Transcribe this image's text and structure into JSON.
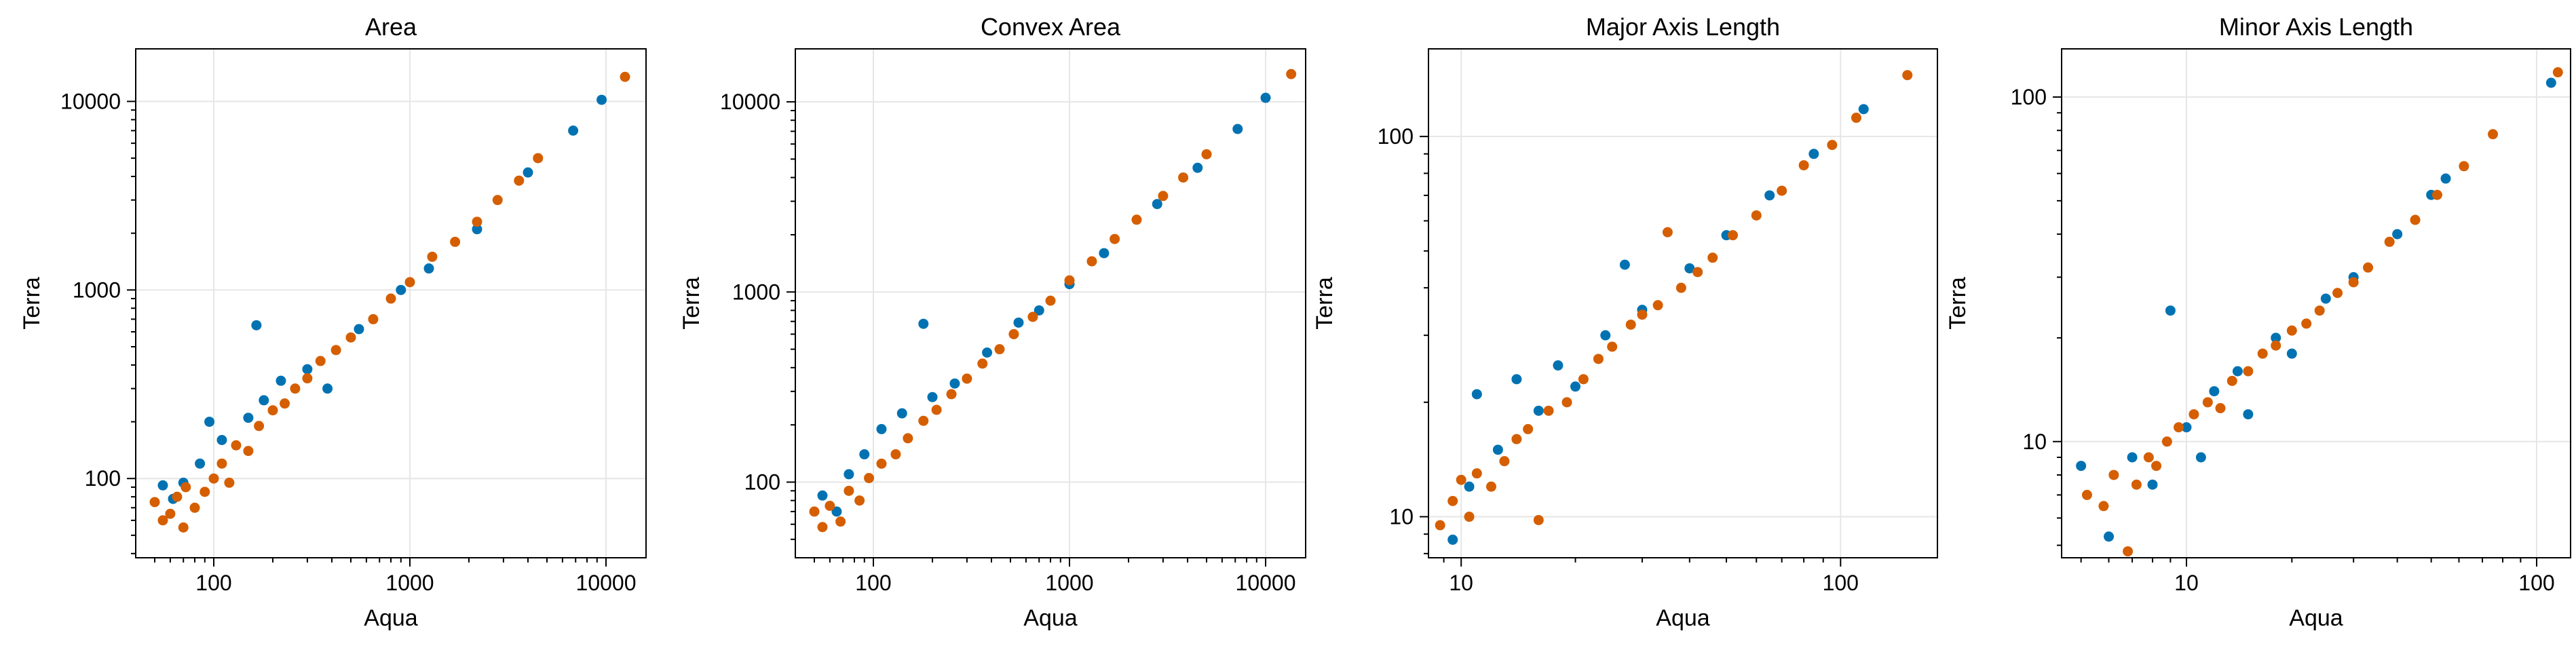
{
  "colors": {
    "series_a": "#0072B2",
    "series_b": "#D55E00",
    "grid": "#e6e6e6",
    "frame": "#000000"
  },
  "chart_data": [
    {
      "type": "scatter",
      "title": "Area",
      "xlabel": "Aqua",
      "ylabel": "Terra",
      "xscale": "log",
      "yscale": "log",
      "xlim": [
        40,
        16000
      ],
      "ylim": [
        38,
        19000
      ],
      "xticks": [
        100,
        1000,
        10000
      ],
      "xtick_labels": [
        "100",
        "1000",
        "10000"
      ],
      "yticks": [
        100,
        1000,
        10000
      ],
      "ytick_labels": [
        "100",
        "1000",
        "10000"
      ],
      "grid": true,
      "series": [
        {
          "color": "#0072B2",
          "points": [
            [
              55,
              92
            ],
            [
              62,
              78
            ],
            [
              70,
              95
            ],
            [
              85,
              120
            ],
            [
              95,
              200
            ],
            [
              110,
              160
            ],
            [
              150,
              210
            ],
            [
              165,
              650
            ],
            [
              180,
              260
            ],
            [
              220,
              330
            ],
            [
              300,
              380
            ],
            [
              380,
              300
            ],
            [
              550,
              620
            ],
            [
              900,
              1000
            ],
            [
              1250,
              1300
            ],
            [
              2200,
              2100
            ],
            [
              4000,
              4200
            ],
            [
              6800,
              7000
            ],
            [
              9500,
              10200
            ]
          ]
        },
        {
          "color": "#D55E00",
          "points": [
            [
              50,
              75
            ],
            [
              55,
              60
            ],
            [
              60,
              65
            ],
            [
              65,
              80
            ],
            [
              70,
              55
            ],
            [
              72,
              90
            ],
            [
              80,
              70
            ],
            [
              90,
              85
            ],
            [
              100,
              100
            ],
            [
              110,
              120
            ],
            [
              120,
              95
            ],
            [
              130,
              150
            ],
            [
              150,
              140
            ],
            [
              170,
              190
            ],
            [
              200,
              230
            ],
            [
              230,
              250
            ],
            [
              260,
              300
            ],
            [
              300,
              340
            ],
            [
              350,
              420
            ],
            [
              420,
              480
            ],
            [
              500,
              560
            ],
            [
              650,
              700
            ],
            [
              800,
              900
            ],
            [
              1000,
              1100
            ],
            [
              1300,
              1500
            ],
            [
              1700,
              1800
            ],
            [
              2200,
              2300
            ],
            [
              2800,
              3000
            ],
            [
              3600,
              3800
            ],
            [
              4500,
              5000
            ],
            [
              12500,
              13500
            ]
          ]
        }
      ]
    },
    {
      "type": "scatter",
      "title": "Convex Area",
      "xlabel": "Aqua",
      "ylabel": "Terra",
      "xscale": "log",
      "yscale": "log",
      "xlim": [
        40,
        16000
      ],
      "ylim": [
        40,
        19000
      ],
      "xticks": [
        100,
        1000,
        10000
      ],
      "xtick_labels": [
        "100",
        "1000",
        "10000"
      ],
      "yticks": [
        100,
        1000,
        10000
      ],
      "ytick_labels": [
        "100",
        "1000",
        "10000"
      ],
      "grid": true,
      "series": [
        {
          "color": "#0072B2",
          "points": [
            [
              55,
              85
            ],
            [
              65,
              70
            ],
            [
              75,
              110
            ],
            [
              90,
              140
            ],
            [
              110,
              190
            ],
            [
              140,
              230
            ],
            [
              180,
              680
            ],
            [
              200,
              280
            ],
            [
              260,
              330
            ],
            [
              380,
              480
            ],
            [
              550,
              690
            ],
            [
              700,
              800
            ],
            [
              1000,
              1100
            ],
            [
              1500,
              1600
            ],
            [
              2800,
              2900
            ],
            [
              4500,
              4500
            ],
            [
              7200,
              7200
            ],
            [
              10000,
              10500
            ]
          ]
        },
        {
          "color": "#D55E00",
          "points": [
            [
              50,
              70
            ],
            [
              55,
              58
            ],
            [
              60,
              75
            ],
            [
              68,
              62
            ],
            [
              75,
              90
            ],
            [
              85,
              80
            ],
            [
              95,
              105
            ],
            [
              110,
              125
            ],
            [
              130,
              140
            ],
            [
              150,
              170
            ],
            [
              180,
              210
            ],
            [
              210,
              240
            ],
            [
              250,
              290
            ],
            [
              300,
              350
            ],
            [
              360,
              420
            ],
            [
              440,
              500
            ],
            [
              520,
              600
            ],
            [
              650,
              740
            ],
            [
              800,
              900
            ],
            [
              1000,
              1150
            ],
            [
              1300,
              1450
            ],
            [
              1700,
              1900
            ],
            [
              2200,
              2400
            ],
            [
              3000,
              3200
            ],
            [
              3800,
              4000
            ],
            [
              5000,
              5300
            ],
            [
              13500,
              14000
            ]
          ]
        }
      ]
    },
    {
      "type": "scatter",
      "title": "Major Axis Length",
      "xlabel": "Aqua",
      "ylabel": "Terra",
      "xscale": "log",
      "yscale": "log",
      "xlim": [
        8.2,
        180
      ],
      "ylim": [
        7.8,
        170
      ],
      "xticks": [
        10,
        100
      ],
      "xtick_labels": [
        "10",
        "100"
      ],
      "yticks": [
        10,
        100
      ],
      "ytick_labels": [
        "10",
        "100"
      ],
      "grid": true,
      "series": [
        {
          "color": "#0072B2",
          "points": [
            [
              9.5,
              8.7
            ],
            [
              10.5,
              12
            ],
            [
              11,
              21
            ],
            [
              12.5,
              15
            ],
            [
              14,
              23
            ],
            [
              16,
              19
            ],
            [
              18,
              25
            ],
            [
              20,
              22
            ],
            [
              24,
              30
            ],
            [
              27,
              46
            ],
            [
              30,
              35
            ],
            [
              40,
              45
            ],
            [
              50,
              55
            ],
            [
              65,
              70
            ],
            [
              85,
              90
            ],
            [
              115,
              118
            ]
          ]
        },
        {
          "color": "#D55E00",
          "points": [
            [
              8.8,
              9.5
            ],
            [
              9.5,
              11
            ],
            [
              10,
              12.5
            ],
            [
              10.5,
              10
            ],
            [
              11,
              13
            ],
            [
              12,
              12
            ],
            [
              13,
              14
            ],
            [
              14,
              16
            ],
            [
              15,
              17
            ],
            [
              16,
              9.8
            ],
            [
              17,
              19
            ],
            [
              19,
              20
            ],
            [
              21,
              23
            ],
            [
              23,
              26
            ],
            [
              25,
              28
            ],
            [
              28,
              32
            ],
            [
              30,
              34
            ],
            [
              33,
              36
            ],
            [
              35,
              56
            ],
            [
              38,
              40
            ],
            [
              42,
              44
            ],
            [
              46,
              48
            ],
            [
              52,
              55
            ],
            [
              60,
              62
            ],
            [
              70,
              72
            ],
            [
              80,
              84
            ],
            [
              95,
              95
            ],
            [
              110,
              112
            ],
            [
              150,
              145
            ]
          ]
        }
      ]
    },
    {
      "type": "scatter",
      "title": "Minor Axis Length",
      "xlabel": "Aqua",
      "ylabel": "Terra",
      "xscale": "log",
      "yscale": "log",
      "xlim": [
        4.4,
        125
      ],
      "ylim": [
        4.6,
        138
      ],
      "xticks": [
        10,
        100
      ],
      "xtick_labels": [
        "10",
        "100"
      ],
      "yticks": [
        10,
        100
      ],
      "ytick_labels": [
        "10",
        "100"
      ],
      "grid": true,
      "series": [
        {
          "color": "#0072B2",
          "points": [
            [
              5,
              8.5
            ],
            [
              6,
              5.3
            ],
            [
              7,
              9
            ],
            [
              8,
              7.5
            ],
            [
              9,
              24
            ],
            [
              10,
              11
            ],
            [
              11,
              9
            ],
            [
              12,
              14
            ],
            [
              14,
              16
            ],
            [
              15,
              12
            ],
            [
              18,
              20
            ],
            [
              20,
              18
            ],
            [
              25,
              26
            ],
            [
              30,
              30
            ],
            [
              40,
              40
            ],
            [
              50,
              52
            ],
            [
              55,
              58
            ],
            [
              110,
              110
            ]
          ]
        },
        {
          "color": "#D55E00",
          "points": [
            [
              5.2,
              7
            ],
            [
              5.8,
              6.5
            ],
            [
              6.2,
              8
            ],
            [
              6.8,
              4.8
            ],
            [
              7.2,
              7.5
            ],
            [
              7.8,
              9
            ],
            [
              8.2,
              8.5
            ],
            [
              8.8,
              10
            ],
            [
              9.5,
              11
            ],
            [
              10.5,
              12
            ],
            [
              11.5,
              13
            ],
            [
              12.5,
              12.5
            ],
            [
              13.5,
              15
            ],
            [
              15,
              16
            ],
            [
              16.5,
              18
            ],
            [
              18,
              19
            ],
            [
              20,
              21
            ],
            [
              22,
              22
            ],
            [
              24,
              24
            ],
            [
              27,
              27
            ],
            [
              30,
              29
            ],
            [
              33,
              32
            ],
            [
              38,
              38
            ],
            [
              45,
              44
            ],
            [
              52,
              52
            ],
            [
              62,
              63
            ],
            [
              75,
              78
            ],
            [
              115,
              118
            ]
          ]
        }
      ]
    }
  ]
}
